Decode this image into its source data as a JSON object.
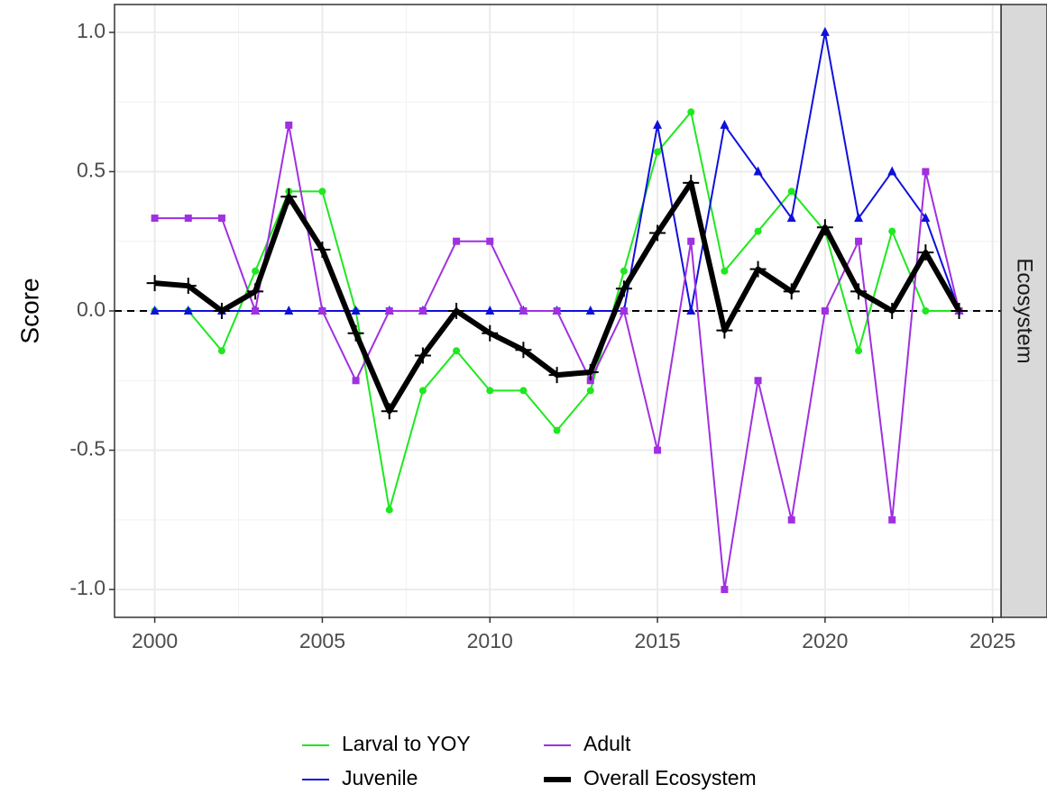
{
  "chart_data": {
    "type": "line",
    "facet_label": "Ecosystem",
    "y_label": "Score",
    "x": [
      2000,
      2001,
      2002,
      2003,
      2004,
      2005,
      2006,
      2007,
      2008,
      2009,
      2010,
      2011,
      2012,
      2013,
      2014,
      2015,
      2016,
      2017,
      2018,
      2019,
      2020,
      2021,
      2022,
      2023,
      2024
    ],
    "series": [
      {
        "name": "Larval to YOY",
        "color": "#1ee81e",
        "marker": "circle",
        "width": 2,
        "values": [
          0,
          0,
          -0.143,
          0.143,
          0.429,
          0.429,
          0,
          -0.714,
          -0.286,
          -0.143,
          -0.286,
          -0.286,
          -0.429,
          -0.286,
          0.143,
          0.571,
          0.714,
          0.143,
          0.286,
          0.429,
          0.286,
          -0.143,
          0.286,
          0,
          0
        ]
      },
      {
        "name": "Juvenile",
        "color": "#1010dd",
        "marker": "triangle",
        "width": 2,
        "values": [
          0,
          0,
          0,
          0,
          0,
          0,
          0,
          0,
          0,
          0,
          0,
          0,
          0,
          0,
          0,
          0.667,
          0,
          0.667,
          0.5,
          0.333,
          1.0,
          0.333,
          0.5,
          0.333,
          0
        ]
      },
      {
        "name": "Adult",
        "color": "#a030e0",
        "marker": "square",
        "width": 2,
        "values": [
          0.333,
          0.333,
          0.333,
          0,
          0.667,
          0,
          -0.25,
          0,
          0,
          0.25,
          0.25,
          0,
          0,
          -0.25,
          0,
          -0.5,
          0.25,
          -1.0,
          -0.25,
          -0.75,
          0,
          0.25,
          -0.75,
          0.5,
          0
        ]
      },
      {
        "name": "Overall Ecosystem",
        "color": "#000000",
        "marker": "plus",
        "width": 6,
        "values": [
          0.1,
          0.09,
          0,
          0.07,
          0.41,
          0.22,
          -0.08,
          -0.36,
          -0.16,
          0,
          -0.08,
          -0.14,
          -0.23,
          -0.22,
          0.08,
          0.28,
          0.46,
          -0.07,
          0.15,
          0.07,
          0.3,
          0.07,
          0,
          0.21,
          0
        ]
      }
    ],
    "hline": 0,
    "xlim": [
      1998.8,
      2025.25
    ],
    "ylim": [
      -1.1,
      1.1
    ],
    "xticks": [
      2000,
      2005,
      2010,
      2015,
      2020,
      2025
    ],
    "yticks": [
      {
        "value": -1,
        "label": "-1.0"
      },
      -0.5,
      {
        "value": 0,
        "label": "0.0"
      },
      0.5,
      {
        "value": 1,
        "label": "1.0"
      }
    ],
    "grid": true,
    "legend_position": "bottom"
  }
}
